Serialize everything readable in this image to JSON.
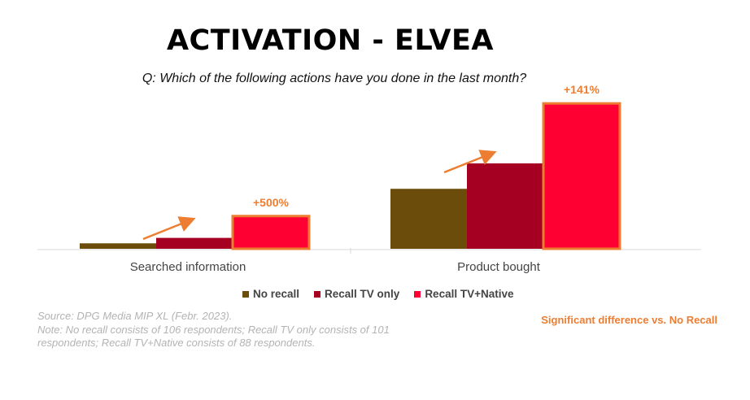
{
  "title": "ACTIVATION - ELVEA",
  "question": "Q: Which of the following actions have you done in the last month?",
  "chart_data": {
    "type": "bar",
    "categories": [
      "Searched information",
      "Product bought"
    ],
    "series": [
      {
        "name": "No recall",
        "values": [
          3,
          33
        ],
        "color": "#6b4c0a"
      },
      {
        "name": "Recall TV only",
        "values": [
          6,
          47
        ],
        "color": "#a50021"
      },
      {
        "name": "Recall TV+Native",
        "values": [
          18,
          80
        ],
        "color": "#ff0033"
      }
    ],
    "highlight": {
      "series": "Recall TV+Native",
      "outline_color": "#ed7d31"
    },
    "annotations": [
      "+500%",
      "+141%"
    ],
    "ylim": [
      0,
      85
    ]
  },
  "legend": {
    "items": [
      {
        "label": "No recall",
        "color": "#6b4c0a"
      },
      {
        "label": "Recall TV only",
        "color": "#a50021"
      },
      {
        "label": "Recall TV+Native",
        "color": "#ff0033"
      }
    ]
  },
  "source": {
    "line1": "Source: DPG Media MIP XL (Febr. 2023).",
    "line2": "Note: No recall consists of 106 respondents; Recall TV only consists of 101",
    "line3": "respondents; Recall TV+Native consists of 88 respondents."
  },
  "significance_note": "Significant difference vs. No Recall"
}
